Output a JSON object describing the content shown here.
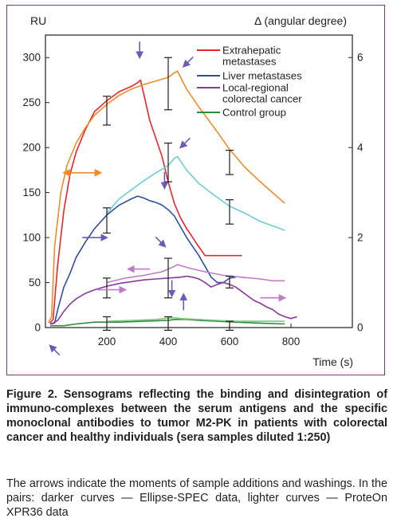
{
  "chart_data": {
    "type": "line",
    "y_left_label": "RU",
    "y_right_label": "Δ (angular degree)",
    "x_label": "Time (s)",
    "x_ticks": [
      200,
      400,
      600,
      800
    ],
    "xlim": [
      0,
      1000
    ],
    "y_left_ticks": [
      0,
      50,
      100,
      150,
      200,
      250,
      300
    ],
    "ylim_left": [
      0,
      325
    ],
    "y_right_ticks": [
      0,
      2,
      4,
      6
    ],
    "ylim_right": [
      0,
      6.5
    ],
    "legend": [
      {
        "name": "Extrahepatic metastases",
        "color": "#e8262b"
      },
      {
        "name": "Liver metastases",
        "color": "#2e4fa3"
      },
      {
        "name": "Local-regional colorectal cancer",
        "color": "#8a3a9c"
      },
      {
        "name": "Control group",
        "color": "#2e8b3a"
      }
    ],
    "series": [
      {
        "name": "Extrahepatic metastases",
        "role": "darker",
        "color": "#e8262b",
        "points": [
          [
            15,
            5
          ],
          [
            25,
            9
          ],
          [
            40,
            70
          ],
          [
            60,
            130
          ],
          [
            80,
            170
          ],
          [
            100,
            195
          ],
          [
            130,
            220
          ],
          [
            160,
            240
          ],
          [
            200,
            252
          ],
          [
            240,
            262
          ],
          [
            280,
            268
          ],
          [
            300,
            272
          ],
          [
            310,
            275
          ],
          [
            320,
            260
          ],
          [
            340,
            230
          ],
          [
            360,
            210
          ],
          [
            380,
            190
          ],
          [
            400,
            162
          ],
          [
            420,
            138
          ],
          [
            440,
            122
          ],
          [
            460,
            110
          ],
          [
            480,
            100
          ],
          [
            495,
            92
          ],
          [
            510,
            85
          ],
          [
            520,
            80
          ],
          [
            560,
            80
          ],
          [
            620,
            80
          ],
          [
            640,
            80
          ]
        ]
      },
      {
        "name": "Extrahepatic metastases",
        "role": "lighter",
        "color": "#f08a2a",
        "points": [
          [
            10,
            5
          ],
          [
            20,
            12
          ],
          [
            30,
            90
          ],
          [
            50,
            150
          ],
          [
            70,
            180
          ],
          [
            100,
            205
          ],
          [
            130,
            222
          ],
          [
            160,
            236
          ],
          [
            200,
            248
          ],
          [
            240,
            258
          ],
          [
            280,
            265
          ],
          [
            320,
            270
          ],
          [
            360,
            274
          ],
          [
            400,
            278
          ],
          [
            420,
            283
          ],
          [
            430,
            285
          ],
          [
            460,
            265
          ],
          [
            500,
            245
          ],
          [
            550,
            222
          ],
          [
            600,
            198
          ],
          [
            650,
            178
          ],
          [
            700,
            162
          ],
          [
            740,
            150
          ],
          [
            780,
            138
          ]
        ]
      },
      {
        "name": "Liver metastases",
        "role": "darker",
        "color": "#2e4fa3",
        "points": [
          [
            15,
            4
          ],
          [
            30,
            5
          ],
          [
            40,
            20
          ],
          [
            60,
            45
          ],
          [
            80,
            60
          ],
          [
            100,
            78
          ],
          [
            130,
            95
          ],
          [
            160,
            110
          ],
          [
            200,
            125
          ],
          [
            240,
            136
          ],
          [
            280,
            143
          ],
          [
            300,
            146
          ],
          [
            320,
            144
          ],
          [
            340,
            141
          ],
          [
            360,
            139
          ],
          [
            380,
            136
          ],
          [
            400,
            131
          ],
          [
            420,
            124
          ],
          [
            440,
            112
          ],
          [
            460,
            100
          ],
          [
            480,
            90
          ],
          [
            500,
            80
          ],
          [
            520,
            68
          ],
          [
            540,
            56
          ],
          [
            560,
            50
          ],
          [
            580,
            50
          ],
          [
            600,
            55
          ],
          [
            620,
            56
          ]
        ]
      },
      {
        "name": "Liver metastases",
        "role": "lighter",
        "color": "#6ccfcf",
        "points": [
          [
            200,
            127
          ],
          [
            240,
            143
          ],
          [
            280,
            153
          ],
          [
            320,
            163
          ],
          [
            360,
            172
          ],
          [
            400,
            180
          ],
          [
            420,
            188
          ],
          [
            430,
            190
          ],
          [
            460,
            175
          ],
          [
            500,
            160
          ],
          [
            550,
            147
          ],
          [
            600,
            135
          ],
          [
            650,
            127
          ],
          [
            700,
            118
          ],
          [
            740,
            113
          ],
          [
            780,
            108
          ]
        ]
      },
      {
        "name": "Local-regional colorectal cancer",
        "role": "darker",
        "color": "#8a3a9c",
        "points": [
          [
            20,
            4
          ],
          [
            40,
            8
          ],
          [
            60,
            18
          ],
          [
            80,
            26
          ],
          [
            100,
            32
          ],
          [
            130,
            38
          ],
          [
            160,
            42
          ],
          [
            200,
            46
          ],
          [
            240,
            49
          ],
          [
            280,
            51
          ],
          [
            320,
            53
          ],
          [
            360,
            54
          ],
          [
            400,
            55
          ],
          [
            440,
            56
          ],
          [
            460,
            57
          ],
          [
            480,
            56
          ],
          [
            500,
            54
          ],
          [
            520,
            50
          ],
          [
            540,
            45
          ],
          [
            560,
            48
          ],
          [
            580,
            50
          ],
          [
            600,
            48
          ],
          [
            620,
            45
          ],
          [
            640,
            40
          ],
          [
            660,
            35
          ],
          [
            680,
            30
          ],
          [
            700,
            27
          ],
          [
            720,
            23
          ],
          [
            740,
            20
          ],
          [
            760,
            15
          ],
          [
            780,
            12
          ],
          [
            800,
            10
          ],
          [
            820,
            12
          ]
        ]
      },
      {
        "name": "Local-regional colorectal cancer",
        "role": "lighter",
        "color": "#c07ac8",
        "points": [
          [
            200,
            50
          ],
          [
            260,
            55
          ],
          [
            320,
            58
          ],
          [
            380,
            62
          ],
          [
            420,
            68
          ],
          [
            430,
            70
          ],
          [
            470,
            66
          ],
          [
            520,
            62
          ],
          [
            580,
            58
          ],
          [
            640,
            56
          ],
          [
            700,
            54
          ],
          [
            740,
            52
          ],
          [
            780,
            52
          ]
        ]
      },
      {
        "name": "Control group",
        "role": "darker",
        "color": "#2e8b3a",
        "points": [
          [
            15,
            2
          ],
          [
            30,
            2
          ],
          [
            60,
            2
          ],
          [
            100,
            4
          ],
          [
            160,
            6
          ],
          [
            240,
            6
          ],
          [
            320,
            7
          ],
          [
            400,
            8
          ],
          [
            420,
            9
          ],
          [
            460,
            9
          ],
          [
            500,
            8
          ],
          [
            560,
            7
          ],
          [
            620,
            6
          ],
          [
            700,
            5
          ],
          [
            780,
            4
          ]
        ]
      },
      {
        "name": "Control group",
        "role": "lighter",
        "color": "#7fc97f",
        "points": [
          [
            200,
            7
          ],
          [
            280,
            8
          ],
          [
            360,
            9
          ],
          [
            420,
            11
          ],
          [
            440,
            10
          ],
          [
            500,
            9
          ],
          [
            560,
            8
          ],
          [
            620,
            7
          ],
          [
            700,
            7
          ],
          [
            780,
            7
          ]
        ]
      }
    ],
    "error_bars": [
      {
        "x": 200,
        "low": 225,
        "high": 257
      },
      {
        "x": 400,
        "low": 242,
        "high": 300
      },
      {
        "x": 400,
        "low": 162,
        "high": 205
      },
      {
        "x": 600,
        "low": 170,
        "high": 197
      },
      {
        "x": 200,
        "low": 105,
        "high": 133
      },
      {
        "x": 600,
        "low": 115,
        "high": 142
      },
      {
        "x": 200,
        "low": 33,
        "high": 55
      },
      {
        "x": 400,
        "low": 33,
        "high": 77
      },
      {
        "x": 600,
        "low": 44,
        "high": 57
      },
      {
        "x": 200,
        "low": -3,
        "high": 12
      },
      {
        "x": 400,
        "low": -3,
        "high": 12
      },
      {
        "x": 600,
        "low": -3,
        "high": 7
      }
    ],
    "annotations": [
      {
        "kind": "down-arrow",
        "x": 307,
        "y": 300,
        "color": "#6a5bb8"
      },
      {
        "kind": "diag-arrow",
        "x": 450,
        "y": 290,
        "color": "#6a5bb8"
      },
      {
        "kind": "diag-arrow",
        "x": 440,
        "y": 200,
        "color": "#6a5bb8"
      },
      {
        "kind": "down-arrow",
        "x": 388,
        "y": 155,
        "color": "#6a5bb8"
      },
      {
        "kind": "diag-arrow-se",
        "x": 390,
        "y": 90,
        "color": "#6a5bb8"
      },
      {
        "kind": "up-arrow",
        "x": 450,
        "y": 37,
        "color": "#6a5bb8"
      },
      {
        "kind": "down-arrow",
        "x": 412,
        "y": 35,
        "color": "#6a5bb8"
      },
      {
        "kind": "diag-arrow-nw",
        "x": 15,
        "y": -20,
        "color": "#6a5bb8"
      },
      {
        "kind": "double-arrow",
        "x1": 60,
        "x2": 180,
        "y": 172,
        "color": "#f08a2a"
      },
      {
        "kind": "right-arrow",
        "x1": 120,
        "x2": 200,
        "y": 100,
        "color": "#6a5bb8"
      },
      {
        "kind": "left-arrow",
        "x1": 270,
        "x2": 340,
        "y": 65,
        "color": "#c07ac8"
      },
      {
        "kind": "right-arrow",
        "x1": 170,
        "x2": 260,
        "y": 42,
        "color": "#c07ac8"
      },
      {
        "kind": "right-arrow",
        "x1": 700,
        "x2": 780,
        "y": 33,
        "color": "#c07ac8"
      }
    ]
  },
  "caption": {
    "title": "Figure 2. Sensograms reflecting the binding and disintegration of immuno-complexes between the serum antigens and the specific monoclonal antibodies to tumor M2-PK in patients with colorectal cancer and healthy individuals (sera samples diluted 1:250)",
    "body": "The arrows indicate the moments of sample additions and washings. In the pairs: darker curves — Ellipse-SPEC data, lighter curves — ProteOn XPR36 data"
  }
}
